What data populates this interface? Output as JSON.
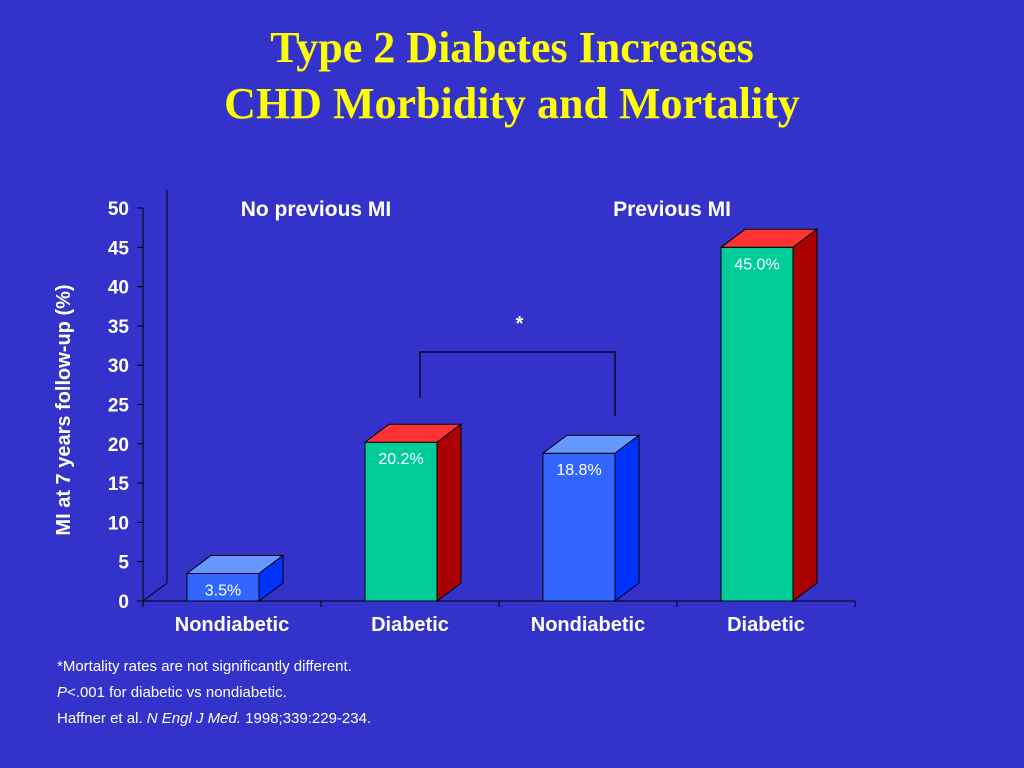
{
  "title": {
    "line1": "Type 2 Diabetes Increases",
    "line2": "CHD Morbidity and Mortality"
  },
  "colors": {
    "background": "#3333cc",
    "title": "#ffff00",
    "text": "#ffffff",
    "nondiabetic_front": "#3366ff",
    "nondiabetic_top": "#6699ff",
    "nondiabetic_side": "#0033ff",
    "diabetic_front": "#00cc99",
    "diabetic_top": "#ff3333",
    "diabetic_side": "#aa0000"
  },
  "chart_data": {
    "type": "bar",
    "title": "",
    "ylabel": "MI at 7 years follow-up (%)",
    "xlabel": "",
    "ylim": [
      0,
      50
    ],
    "yticks": [
      0,
      5,
      10,
      15,
      20,
      25,
      30,
      35,
      40,
      45,
      50
    ],
    "grid": false,
    "groups": [
      {
        "label": "No previous MI",
        "categories": [
          0,
          1
        ]
      },
      {
        "label": "Previous MI",
        "categories": [
          2,
          3
        ]
      }
    ],
    "categories": [
      "Nondiabetic",
      "Diabetic",
      "Nondiabetic",
      "Diabetic"
    ],
    "values": [
      3.5,
      20.2,
      18.8,
      45.0
    ],
    "data_labels": [
      "3.5%",
      "20.2%",
      "18.8%",
      "45.0%"
    ],
    "bar_kind": [
      "nondiabetic",
      "diabetic",
      "nondiabetic",
      "diabetic"
    ],
    "annotations": [
      {
        "text": "*",
        "between": [
          1,
          2
        ],
        "type": "bracket"
      }
    ]
  },
  "footnotes": {
    "line1": "*Mortality rates are not significantly different.",
    "line2_italic": "P",
    "line2_rest": "<.001 for diabetic vs nondiabetic.",
    "line3_start": "Haffner et al. ",
    "line3_italic": "N Engl J Med.",
    "line3_end": " 1998;339:229-234."
  }
}
